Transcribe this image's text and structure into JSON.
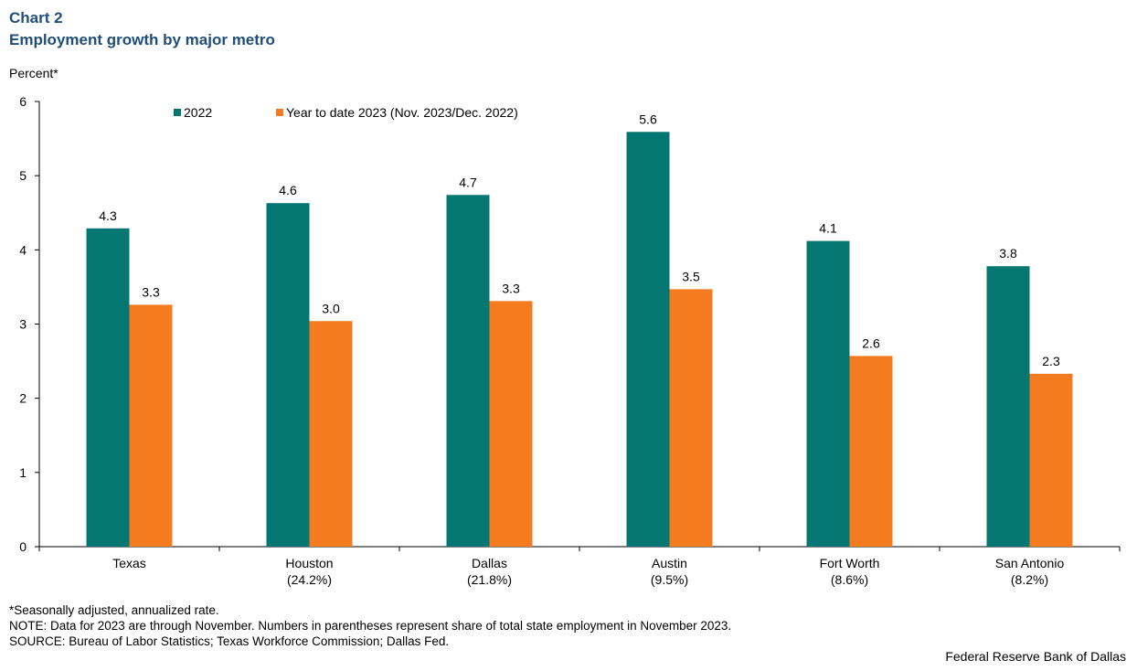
{
  "header": {
    "chart_label": "Chart 2",
    "title": "Employment growth by major metro"
  },
  "colors": {
    "series_2022": "#057772",
    "series_2023": "#f47b20",
    "title": "#1f4e79"
  },
  "chart_data": {
    "type": "bar",
    "title": "Employment growth by major metro",
    "ylabel": "Percent*",
    "xlabel": "",
    "ylim": [
      0,
      6
    ],
    "yticks": [
      0,
      1,
      2,
      3,
      4,
      5,
      6
    ],
    "grid": false,
    "legend_position": "top-left",
    "categories": [
      {
        "name": "Texas",
        "share": ""
      },
      {
        "name": "Houston",
        "share": "(24.2%)"
      },
      {
        "name": "Dallas",
        "share": "(21.8%)"
      },
      {
        "name": "Austin",
        "share": "(9.5%)"
      },
      {
        "name": "Fort Worth",
        "share": "(8.6%)"
      },
      {
        "name": "San Antonio",
        "share": "(8.2%)"
      }
    ],
    "series": [
      {
        "name": "2022",
        "color": "#057772",
        "values": [
          4.29,
          4.63,
          4.74,
          5.59,
          4.12,
          3.78
        ],
        "labels": [
          "4.3",
          "4.6",
          "4.7",
          "5.6",
          "4.1",
          "3.8"
        ]
      },
      {
        "name": "Year to date 2023 (Nov. 2023/Dec. 2022)",
        "color": "#f47b20",
        "values": [
          3.26,
          3.04,
          3.31,
          3.47,
          2.57,
          2.33
        ],
        "labels": [
          "3.3",
          "3.0",
          "3.3",
          "3.5",
          "2.6",
          "2.3"
        ]
      }
    ]
  },
  "footnotes": {
    "note1": "*Seasonally adjusted, annualized rate.",
    "note2": "NOTE: Data for 2023 are through November. Numbers in parentheses represent share of total state employment in November 2023.",
    "note3": "SOURCE: Bureau of Labor Statistics; Texas Workforce Commission; Dallas Fed."
  },
  "credit": "Federal Reserve Bank of Dallas"
}
